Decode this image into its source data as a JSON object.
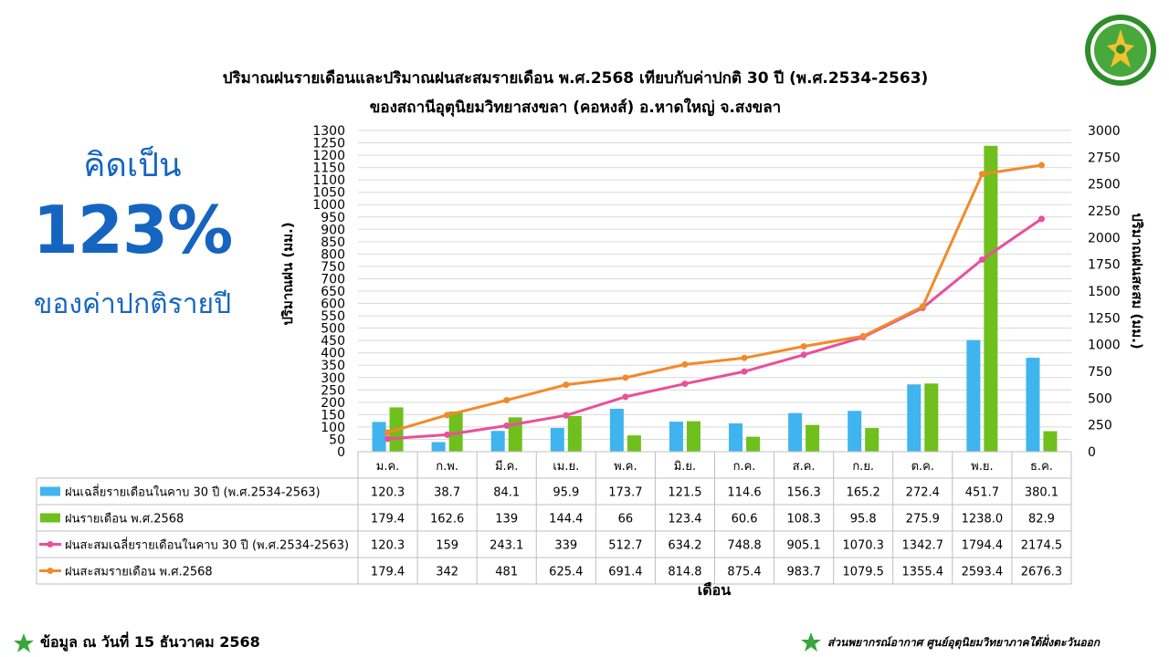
{
  "header": {
    "title_line1": "ปริมาณฝนรายเดือนและปริมาณฝนสะสมรายเดือน  พ.ศ.2568  เทียบกับค่าปกติ  30  ปี  (พ.ศ.2534-2563)",
    "title_line2": "ของสถานีอุตุนิยมวิทยาสงขลา  (คอหงส์)  อ.หาดใหญ่  จ.สงขลา"
  },
  "summary": {
    "line1": "คิดเป็น",
    "percent": "123%",
    "line3": "ของค่าปกติรายปี"
  },
  "footer": {
    "left": "ข้อมูล ณ วันที่ 15 ธันวาคม 2568",
    "right": "ส่วนพยากรณ์อากาศ ศูนย์อุตุนิยมวิทยาภาคใต้ฝั่งตะวันออก"
  },
  "logo_icon": "meteorological-department-seal-icon",
  "star_icon": "green-star-icon",
  "chart_data": {
    "type": "bar",
    "xlabel": "เดือน",
    "ylabel": "ปริมาณฝน (มม.)",
    "y2label": "ปริมาณฝนสะสม (มม.)",
    "ylim": [
      0,
      1300
    ],
    "y_ticks": [
      0,
      50,
      100,
      150,
      200,
      250,
      300,
      350,
      400,
      450,
      500,
      550,
      600,
      650,
      700,
      750,
      800,
      850,
      900,
      950,
      1000,
      1050,
      1100,
      1150,
      1200,
      1250,
      1300
    ],
    "y2lim": [
      0,
      3000
    ],
    "y2_ticks": [
      0,
      250,
      500,
      750,
      1000,
      1250,
      1500,
      1750,
      2000,
      2250,
      2500,
      2750,
      3000
    ],
    "grid": true,
    "legend": "data-table",
    "categories": [
      "ม.ค.",
      "ก.พ.",
      "มี.ค.",
      "เม.ย.",
      "พ.ค.",
      "มิ.ย.",
      "ก.ค.",
      "ส.ค.",
      "ก.ย.",
      "ต.ค.",
      "พ.ย.",
      "ธ.ค."
    ],
    "series": [
      {
        "name": "ฝนเฉลี่ยรายเดือนในคาบ 30 ปี (พ.ศ.2534-2563)",
        "type": "bar",
        "axis": "left",
        "color": "#3fb4ee",
        "values": [
          120.3,
          38.7,
          84.1,
          95.9,
          173.7,
          121.5,
          114.6,
          156.3,
          165.2,
          272.4,
          451.7,
          380.1
        ],
        "labels": [
          "120.3",
          "38.7",
          "84.1",
          "95.9",
          "173.7",
          "121.5",
          "114.6",
          "156.3",
          "165.2",
          "272.4",
          "451.7",
          "380.1"
        ]
      },
      {
        "name": "ฝนรายเดือน พ.ศ.2568",
        "type": "bar",
        "axis": "left",
        "color": "#6fbf1d",
        "values": [
          179.4,
          162.6,
          139,
          144.4,
          66,
          123.4,
          60.6,
          108.3,
          95.8,
          275.9,
          1238.0,
          82.9
        ],
        "labels": [
          "179.4",
          "162.6",
          "139",
          "144.4",
          "66",
          "123.4",
          "60.6",
          "108.3",
          "95.8",
          "275.9",
          "1238.0",
          "82.9"
        ]
      },
      {
        "name": "ฝนสะสมเฉลี่ยรายเดือนในคาบ 30 ปี (พ.ศ.2534-2563)",
        "type": "line",
        "axis": "right",
        "color": "#e8509a",
        "values": [
          120.3,
          159,
          243.1,
          339,
          512.7,
          634.2,
          748.8,
          905.1,
          1070.3,
          1342.7,
          1794.4,
          2174.5
        ],
        "labels": [
          "120.3",
          "159",
          "243.1",
          "339",
          "512.7",
          "634.2",
          "748.8",
          "905.1",
          "1070.3",
          "1342.7",
          "1794.4",
          "2174.5"
        ]
      },
      {
        "name": "ฝนสะสมรายเดือน พ.ศ.2568",
        "type": "line",
        "axis": "right",
        "color": "#f28a2b",
        "values": [
          179.4,
          342,
          481,
          625.4,
          691.4,
          814.8,
          875.4,
          983.7,
          1079.5,
          1355.4,
          2593.4,
          2676.3
        ],
        "labels": [
          "179.4",
          "342",
          "481",
          "625.4",
          "691.4",
          "814.8",
          "875.4",
          "983.7",
          "1079.5",
          "1355.4",
          "2593.4",
          "2676.3"
        ]
      }
    ]
  }
}
